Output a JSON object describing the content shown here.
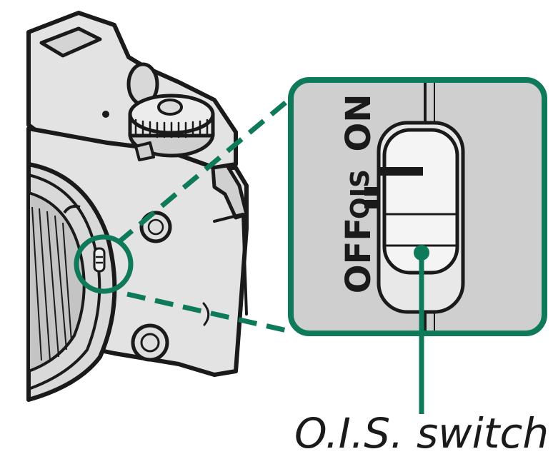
{
  "callout": {
    "label_on": "ON",
    "label_ois": "OIS",
    "label_off": "OFF"
  },
  "caption": {
    "text": "O.I.S. switch"
  },
  "colors": {
    "accent": "#0f7a5a",
    "panel_fill": "#cfcfcf",
    "camera_fill": "#e3e3e3",
    "outline": "#1a1a1a"
  },
  "icons": {
    "camera": "camera-body-illustration",
    "switch": "slide-switch"
  }
}
